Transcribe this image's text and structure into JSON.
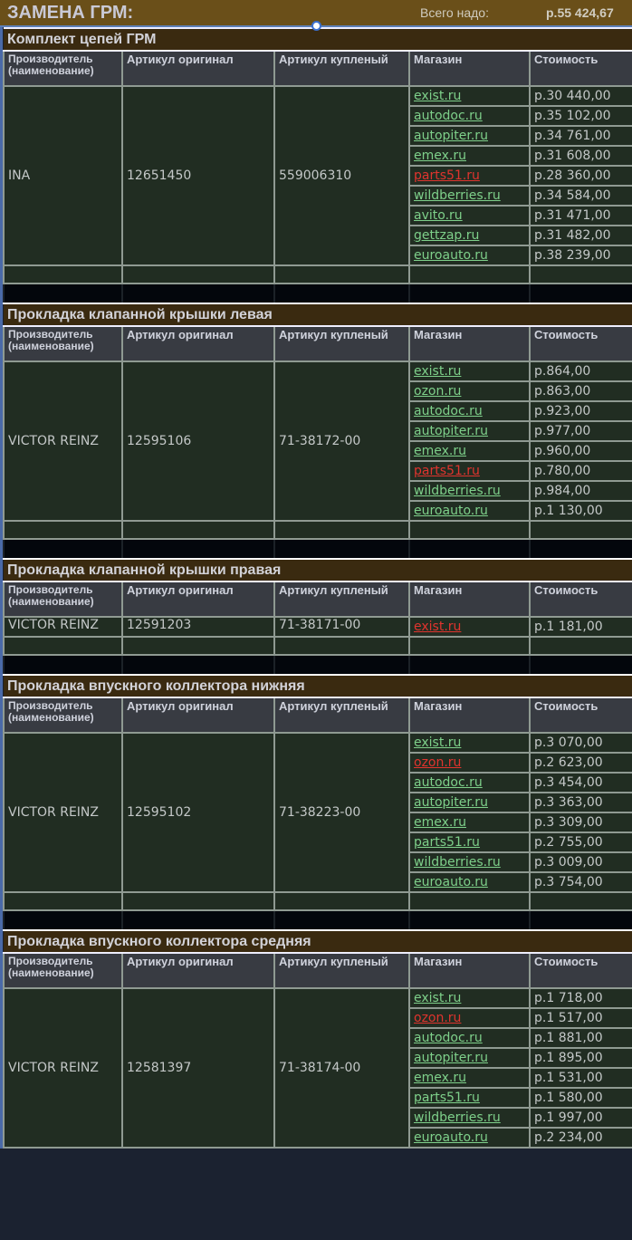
{
  "title": "ЗАМЕНА ГРМ:",
  "total_label": "Всего надо:",
  "total_value": "р.55 424,67",
  "columns": [
    "Производитель (наименование)",
    "Артикул оригинал",
    "Артикул купленый",
    "Магазин",
    "Стоимость"
  ],
  "colors": {
    "link": "#7ed08a",
    "link_highlight": "#e0342e",
    "section_bg": "#3a2a10",
    "row_bg": "#212d22"
  },
  "sections": [
    {
      "name": "Комплект цепей ГРМ",
      "maker": "INA",
      "orig": "12651450",
      "bought": "559006310",
      "offers": [
        {
          "shop": "exist.ru",
          "price": "р.30 440,00",
          "red": false
        },
        {
          "shop": "autodoc.ru",
          "price": "р.35 102,00",
          "red": false
        },
        {
          "shop": "autopiter.ru",
          "price": "р.34 761,00",
          "red": false
        },
        {
          "shop": "emex.ru",
          "price": "р.31 608,00",
          "red": false
        },
        {
          "shop": "parts51.ru",
          "price": "р.28 360,00",
          "red": true
        },
        {
          "shop": "wildberries.ru",
          "price": "р.34 584,00",
          "red": false
        },
        {
          "shop": "avito.ru",
          "price": "р.31 471,00",
          "red": false
        },
        {
          "shop": "gettzap.ru",
          "price": "р.31 482,00",
          "red": false
        },
        {
          "shop": "euroauto.ru",
          "price": "р.38 239,00",
          "red": false
        }
      ]
    },
    {
      "name": "Прокладка клапанной крышки левая",
      "maker": "VICTOR REINZ",
      "orig": "12595106",
      "bought": "71-38172-00",
      "offers": [
        {
          "shop": "exist.ru",
          "price": "р.864,00",
          "red": false
        },
        {
          "shop": "ozon.ru",
          "price": "р.863,00",
          "red": false
        },
        {
          "shop": "autodoc.ru",
          "price": "р.923,00",
          "red": false
        },
        {
          "shop": "autopiter.ru",
          "price": "р.977,00",
          "red": false
        },
        {
          "shop": "emex.ru",
          "price": "р.960,00",
          "red": false
        },
        {
          "shop": "parts51.ru",
          "price": "р.780,00",
          "red": true
        },
        {
          "shop": "wildberries.ru",
          "price": "р.984,00",
          "red": false
        },
        {
          "shop": "euroauto.ru",
          "price": "р.1 130,00",
          "red": false
        }
      ]
    },
    {
      "name": "Прокладка клапанной крышки правая",
      "maker": "VICTOR REINZ",
      "orig": "12591203",
      "bought": "71-38171-00",
      "offers": [
        {
          "shop": "exist.ru",
          "price": "р.1 181,00",
          "red": true
        }
      ]
    },
    {
      "name": "Прокладка впускного коллектора нижняя",
      "maker": "VICTOR REINZ",
      "orig": "12595102",
      "bought": "71-38223-00",
      "offers": [
        {
          "shop": "exist.ru",
          "price": "р.3 070,00",
          "red": false
        },
        {
          "shop": "ozon.ru",
          "price": "р.2 623,00",
          "red": true
        },
        {
          "shop": "autodoc.ru",
          "price": "р.3 454,00",
          "red": false
        },
        {
          "shop": "autopiter.ru",
          "price": "р.3 363,00",
          "red": false
        },
        {
          "shop": "emex.ru",
          "price": "р.3 309,00",
          "red": false
        },
        {
          "shop": "parts51.ru",
          "price": "р.2 755,00",
          "red": false
        },
        {
          "shop": "wildberries.ru",
          "price": "р.3 009,00",
          "red": false
        },
        {
          "shop": "euroauto.ru",
          "price": "р.3 754,00",
          "red": false
        }
      ]
    },
    {
      "name": "Прокладка впускного коллектора средняя",
      "maker": "VICTOR REINZ",
      "orig": "12581397",
      "bought": "71-38174-00",
      "offers": [
        {
          "shop": "exist.ru",
          "price": "р.1 718,00",
          "red": false
        },
        {
          "shop": "ozon.ru",
          "price": "р.1 517,00",
          "red": true
        },
        {
          "shop": "autodoc.ru",
          "price": "р.1 881,00",
          "red": false
        },
        {
          "shop": "autopiter.ru",
          "price": "р.1 895,00",
          "red": false
        },
        {
          "shop": "emex.ru",
          "price": "р.1 531,00",
          "red": false
        },
        {
          "shop": "parts51.ru",
          "price": "р.1 580,00",
          "red": false
        },
        {
          "shop": "wildberries.ru",
          "price": "р.1 997,00",
          "red": false
        },
        {
          "shop": "euroauto.ru",
          "price": "р.2 234,00",
          "red": false
        }
      ]
    }
  ]
}
